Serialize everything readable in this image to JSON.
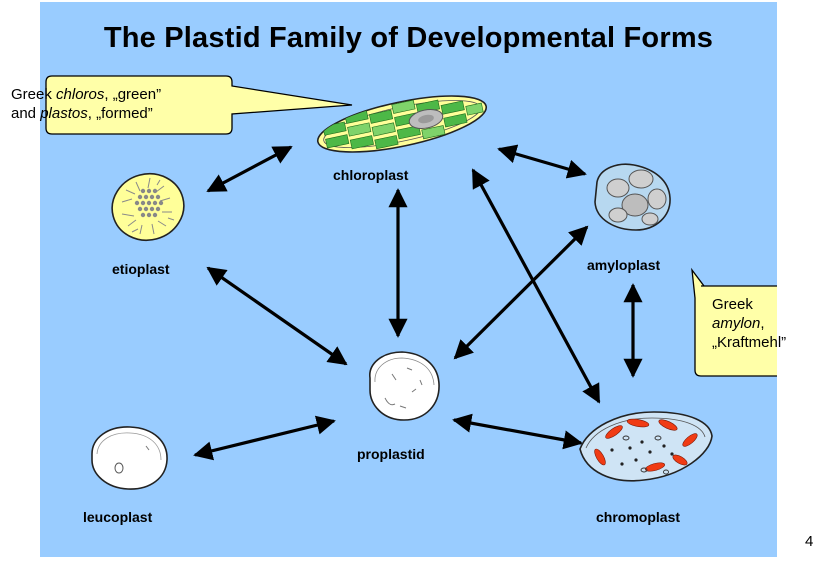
{
  "title": "The Plastid Family of Developmental Forms",
  "plastids": {
    "chloroplast": "chloroplast",
    "etioplast": "etioplast",
    "amyloplast": "amyloplast",
    "proplastid": "proplastid",
    "leucoplast": "leucoplast",
    "chromoplast": "chromoplast"
  },
  "callouts": {
    "chloroplast": {
      "line1_a": "Greek ",
      "line1_b": "chloros",
      "line1_c": ", „green”",
      "line2_a": "and ",
      "line2_b": "plastos",
      "line2_c": ", „formed”"
    },
    "amyloplast": {
      "line1": "Greek",
      "line2_a": "amylon",
      "line2_b": ",",
      "line3": "„Kraftmehl”"
    }
  },
  "page_number": "4",
  "colors": {
    "slide_background": "#99ccff",
    "callout_fill": "#ffffa8",
    "chloroplast_fill": "#ffff99",
    "thylakoid_green": "#4db847",
    "amyloplast_fill": "#b7d8f0",
    "chromoplast_red": "#f03b14"
  }
}
